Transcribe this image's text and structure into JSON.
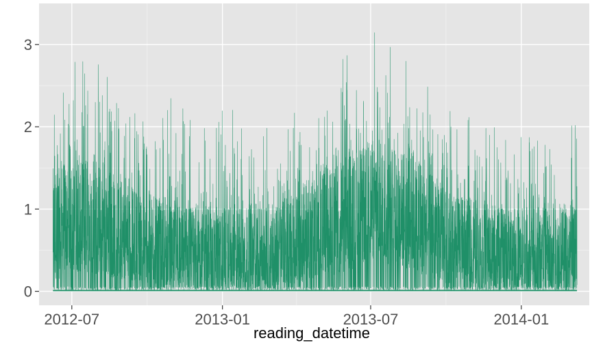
{
  "chart_data": {
    "type": "line",
    "title": "",
    "xlabel": "reading_datetime",
    "ylabel": "",
    "x_tick_labels": [
      "2012-07",
      "2013-01",
      "2013-07",
      "2014-01"
    ],
    "x_ticks": [
      "2012-07-01",
      "2013-01-01",
      "2013-07-01",
      "2014-01-01"
    ],
    "y_tick_labels": [
      "0",
      "1",
      "2",
      "3"
    ],
    "y_ticks": [
      0,
      1,
      2,
      3
    ],
    "xlim": [
      "2012-05-22",
      "2014-03-25"
    ],
    "ylim": [
      -0.17,
      3.5
    ],
    "x_range_of_data": [
      "2012-06-08",
      "2014-03-10"
    ],
    "grid": true,
    "legend": "none",
    "series": [
      {
        "color": "#1f9068",
        "envelope": [
          {
            "x": "2012-06-15",
            "dense_low": 0.15,
            "dense_high": 1.5,
            "peak": 2.4
          },
          {
            "x": "2012-07-01",
            "dense_low": 0.25,
            "dense_high": 1.6,
            "peak": 2.9
          },
          {
            "x": "2012-08-01",
            "dense_low": 0.2,
            "dense_high": 1.5,
            "peak": 2.9
          },
          {
            "x": "2012-09-01",
            "dense_low": 0.15,
            "dense_high": 1.3,
            "peak": 2.6
          },
          {
            "x": "2012-10-01",
            "dense_low": 0.1,
            "dense_high": 1.2,
            "peak": 2.1
          },
          {
            "x": "2012-11-01",
            "dense_low": 0.05,
            "dense_high": 1.0,
            "peak": 2.4
          },
          {
            "x": "2012-12-01",
            "dense_low": 0.05,
            "dense_high": 1.0,
            "peak": 2.2
          },
          {
            "x": "2013-01-01",
            "dense_low": 0.05,
            "dense_high": 1.0,
            "peak": 2.3
          },
          {
            "x": "2013-02-01",
            "dense_low": 0.05,
            "dense_high": 1.0,
            "peak": 2.1
          },
          {
            "x": "2013-03-01",
            "dense_low": 0.05,
            "dense_high": 1.0,
            "peak": 2.0
          },
          {
            "x": "2013-04-01",
            "dense_low": 0.1,
            "dense_high": 1.2,
            "peak": 2.3
          },
          {
            "x": "2013-05-01",
            "dense_low": 0.15,
            "dense_high": 1.4,
            "peak": 2.6
          },
          {
            "x": "2013-06-01",
            "dense_low": 0.2,
            "dense_high": 1.6,
            "peak": 2.9
          },
          {
            "x": "2013-07-01",
            "dense_low": 0.4,
            "dense_high": 1.8,
            "peak": 3.3
          },
          {
            "x": "2013-08-01",
            "dense_low": 0.3,
            "dense_high": 1.7,
            "peak": 3.0
          },
          {
            "x": "2013-09-01",
            "dense_low": 0.2,
            "dense_high": 1.5,
            "peak": 2.6
          },
          {
            "x": "2013-10-01",
            "dense_low": 0.1,
            "dense_high": 1.2,
            "peak": 2.3
          },
          {
            "x": "2013-11-01",
            "dense_low": 0.1,
            "dense_high": 1.1,
            "peak": 2.1
          },
          {
            "x": "2013-12-01",
            "dense_low": 0.05,
            "dense_high": 1.0,
            "peak": 2.0
          },
          {
            "x": "2014-01-01",
            "dense_low": 0.05,
            "dense_high": 1.0,
            "peak": 2.1
          },
          {
            "x": "2014-02-01",
            "dense_low": 0.05,
            "dense_high": 1.0,
            "peak": 2.1
          },
          {
            "x": "2014-03-10",
            "dense_low": 0.05,
            "dense_high": 1.0,
            "peak": 2.2
          }
        ]
      }
    ]
  }
}
